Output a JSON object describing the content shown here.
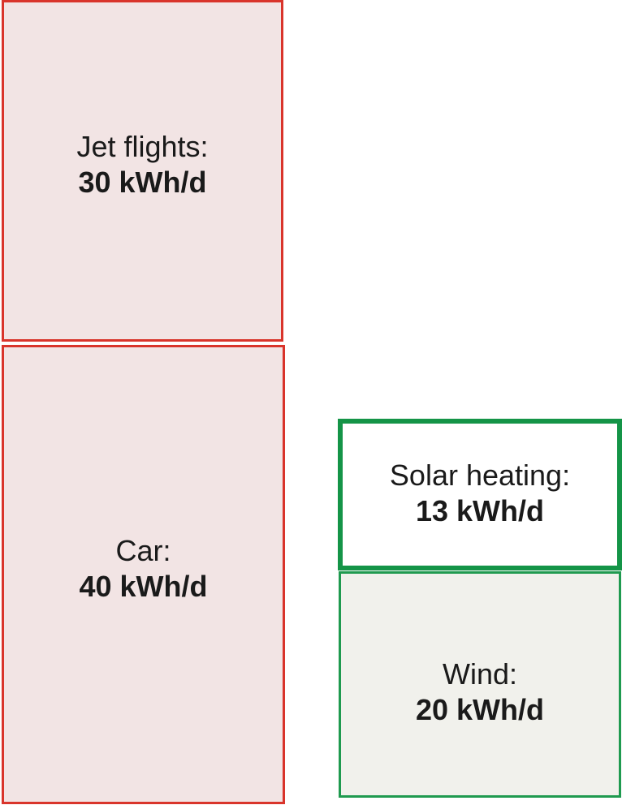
{
  "demand": [
    {
      "label": "Jet flights:",
      "value": "30 kWh/d",
      "kwh": 30
    },
    {
      "label": "Car:",
      "value": "40 kWh/d",
      "kwh": 40
    }
  ],
  "supply": [
    {
      "label": "Solar heating:",
      "value": "13 kWh/d",
      "kwh": 13
    },
    {
      "label": "Wind:",
      "value": "20 kWh/d",
      "kwh": 20
    }
  ],
  "colors": {
    "demand_border": "#d9342b",
    "demand_fill": "#f2e4e4",
    "supply_border": "#149447",
    "supply_fill_solar": "#ffffff",
    "supply_fill_wind": "#f1f1ec"
  }
}
